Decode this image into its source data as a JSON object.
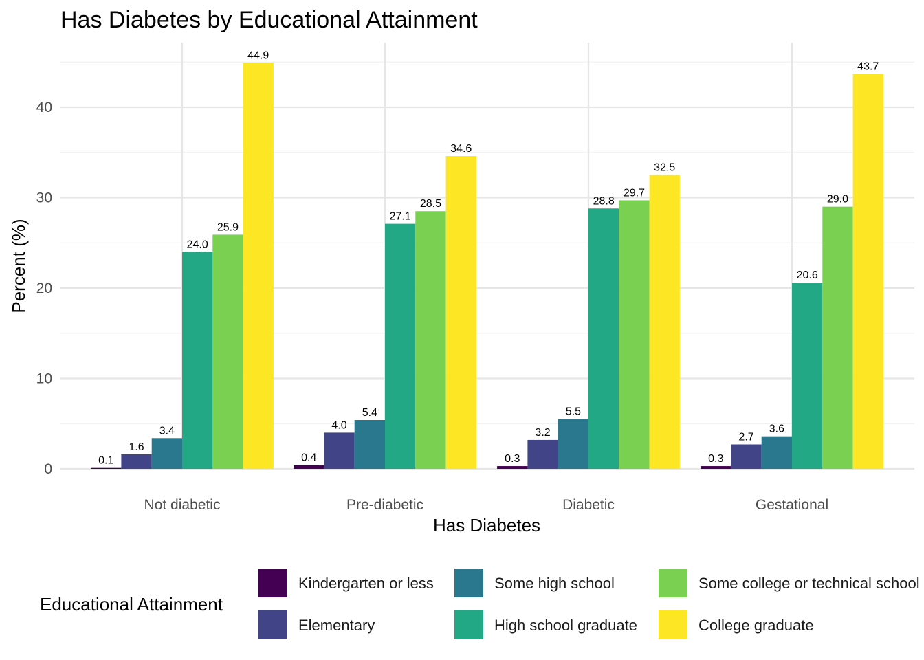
{
  "chart_data": {
    "type": "bar",
    "title": "Has Diabetes by Educational Attainment",
    "xlabel": "Has Diabetes",
    "ylabel": "Percent (%)",
    "categories": [
      "Not diabetic",
      "Pre-diabetic",
      "Diabetic",
      "Gestational"
    ],
    "ylim": [
      0,
      47
    ],
    "yticks": [
      0,
      10,
      20,
      30,
      40
    ],
    "grid": true,
    "legend_title": "Educational Attainment",
    "legend_position": "bottom",
    "series": [
      {
        "name": "Kindergarten or less",
        "color": "#440154",
        "values": [
          0.1,
          0.4,
          0.3,
          0.3
        ],
        "labels": [
          "0.1",
          "0.4",
          "0.3",
          "0.3"
        ]
      },
      {
        "name": "Elementary",
        "color": "#414487",
        "values": [
          1.6,
          4.0,
          3.2,
          2.7
        ],
        "labels": [
          "1.6",
          "4.0",
          "3.2",
          "2.7"
        ]
      },
      {
        "name": "Some high school",
        "color": "#2A788E",
        "values": [
          3.4,
          5.4,
          5.5,
          3.6
        ],
        "labels": [
          "3.4",
          "5.4",
          "5.5",
          "3.6"
        ]
      },
      {
        "name": "High school graduate",
        "color": "#22A884",
        "values": [
          24.0,
          27.1,
          28.8,
          20.6
        ],
        "labels": [
          "24.0",
          "27.1",
          "28.8",
          "20.6"
        ]
      },
      {
        "name": "Some college or technical school",
        "color": "#7AD151",
        "values": [
          25.9,
          28.5,
          29.7,
          29.0
        ],
        "labels": [
          "25.9",
          "28.5",
          "29.7",
          "29.0"
        ]
      },
      {
        "name": "College graduate",
        "color": "#FDE725",
        "values": [
          44.9,
          34.6,
          32.5,
          43.7
        ],
        "labels": [
          "44.9",
          "34.6",
          "32.5",
          "43.7"
        ]
      }
    ]
  }
}
